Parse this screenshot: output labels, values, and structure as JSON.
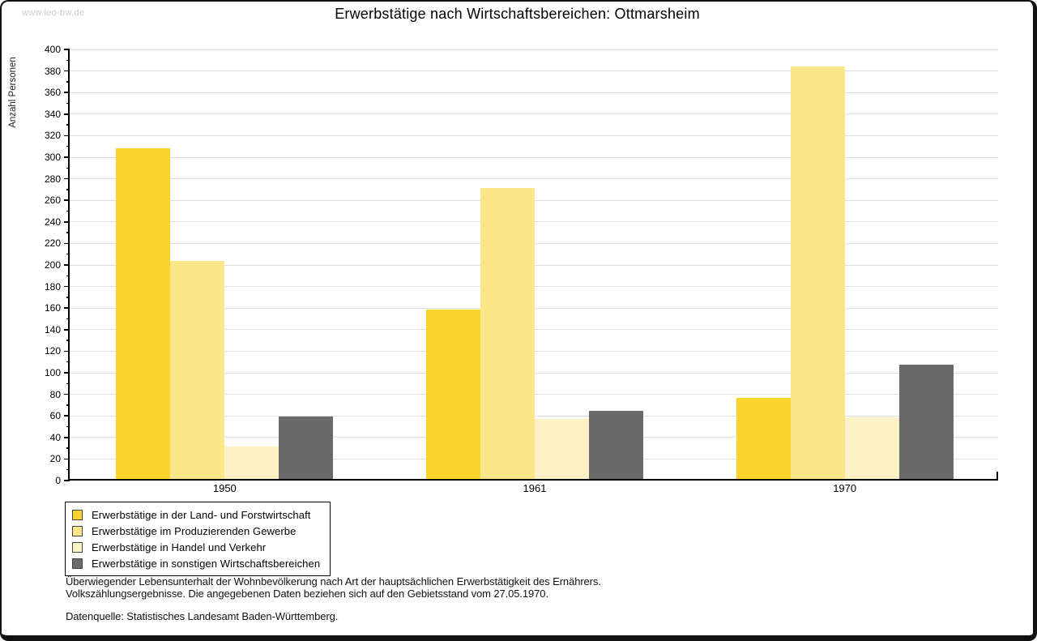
{
  "watermark": "www.leo-bw.de",
  "title": "Erwerbstätige nach Wirtschaftsbereichen: Ottmarsheim",
  "chart_data": {
    "type": "bar",
    "title": "Erwerbstätige nach Wirtschaftsbereichen: Ottmarsheim",
    "xlabel": "",
    "ylabel": "Anzahl Personen",
    "ylim": [
      0,
      400
    ],
    "ytick_step": 20,
    "minor_tick_step": 10,
    "grid": true,
    "legend_position": "bottom-left",
    "categories": [
      "1950",
      "1961",
      "1970"
    ],
    "series": [
      {
        "name": "Erwerbstätige in der Land- und Forstwirtschaft",
        "color": "#FCD22E",
        "values": [
          307,
          157,
          75
        ]
      },
      {
        "name": "Erwerbstätige im Produzierenden Gewerbe",
        "color": "#FCE68A",
        "values": [
          202,
          270,
          383
        ]
      },
      {
        "name": "Erwerbstätige in Handel und Verkehr",
        "color": "#FCF2C6",
        "values": [
          30,
          56,
          57
        ]
      },
      {
        "name": "Erwerbstätige in sonstigen Wirtschaftsbereichen",
        "color": "#6A6A6A",
        "values": [
          58,
          63,
          106
        ]
      }
    ]
  },
  "footer": {
    "line1": "Überwiegender Lebensunterhalt der Wohnbevölkerung nach Art der hauptsächlichen Erwerbstätigkeit des Ernährers.",
    "line2": "Volkszählungsergebnisse. Die angegebenen Daten beziehen sich auf den Gebietsstand vom 27.05.1970.",
    "source": "Datenquelle: Statistisches Landesamt Baden-Württemberg."
  },
  "colors": {
    "grid": "#DEDEDE",
    "axis": "#000000",
    "watermark": "#CCCCCC",
    "frame": "#111111"
  }
}
